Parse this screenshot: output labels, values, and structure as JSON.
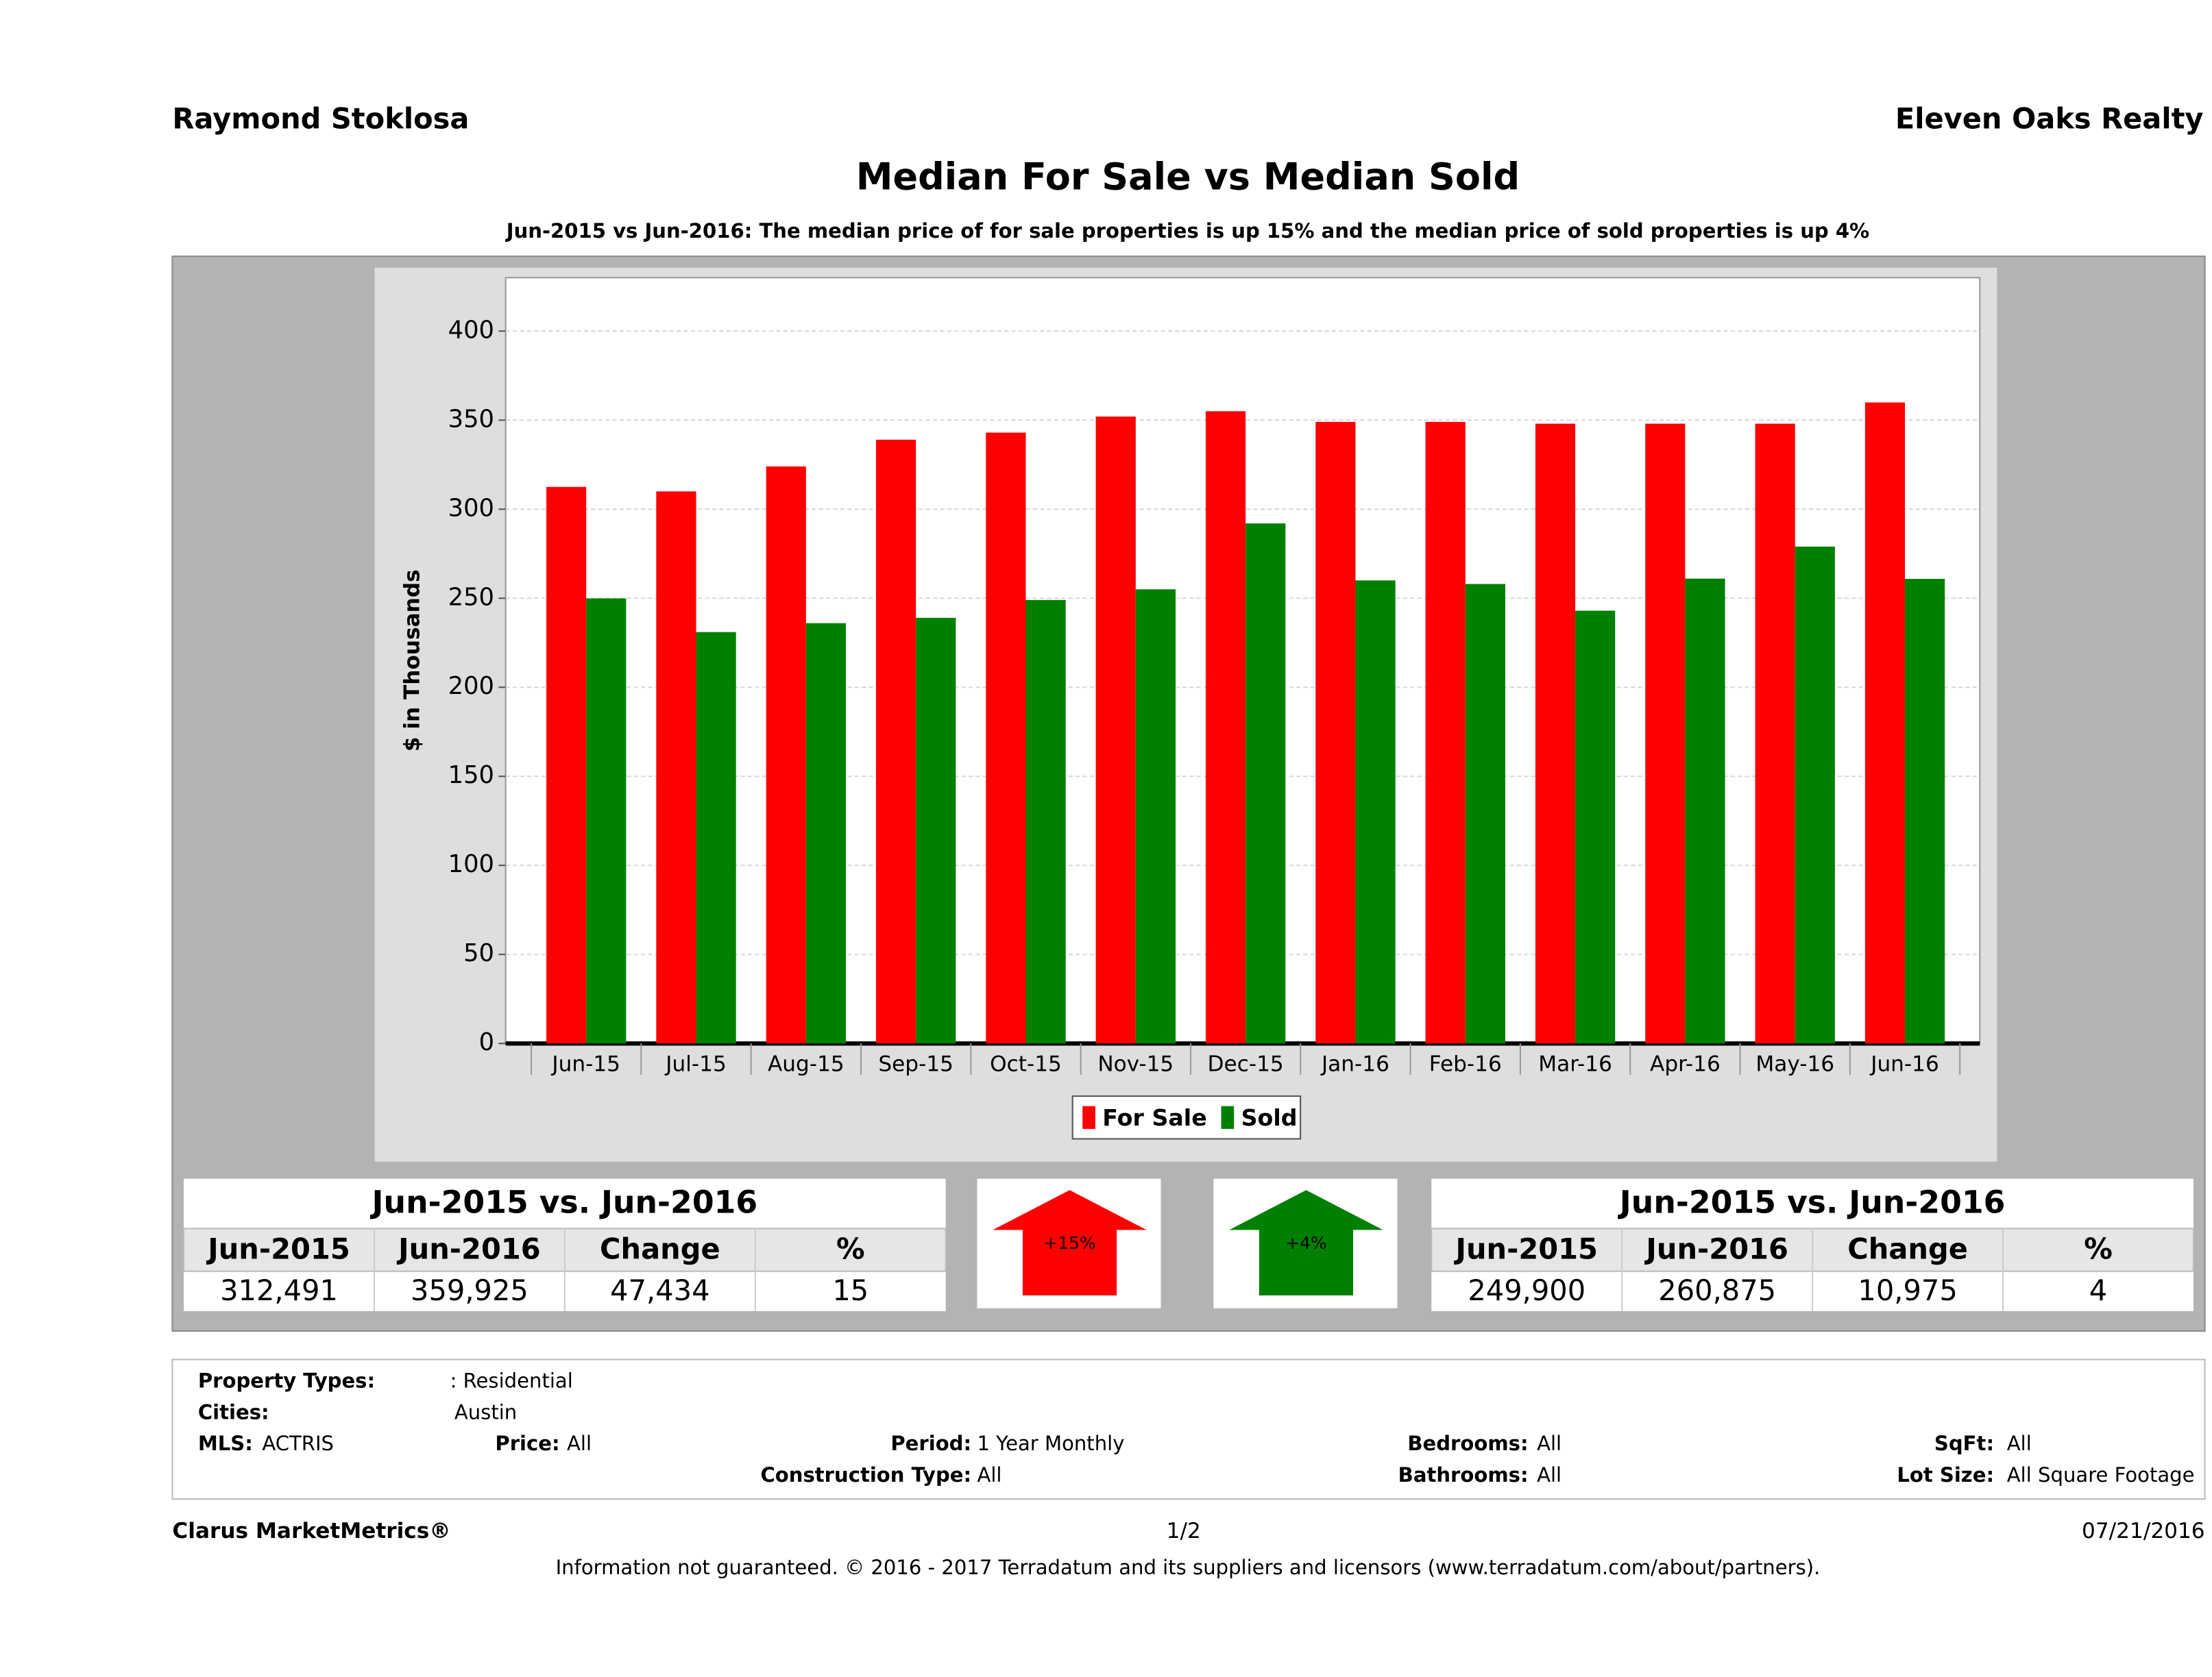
{
  "header": {
    "agent": "Raymond Stoklosa",
    "company": "Eleven Oaks Realty"
  },
  "chart_data": {
    "type": "bar",
    "title": "Median For Sale vs Median Sold",
    "subtitle": "Jun-2015 vs Jun-2016: The median price of for sale properties is up 15% and the median price of sold properties is up 4%",
    "ylabel": "$ in Thousands",
    "categories": [
      "Jun-15",
      "Jul-15",
      "Aug-15",
      "Sep-15",
      "Oct-15",
      "Nov-15",
      "Dec-15",
      "Jan-16",
      "Feb-16",
      "Mar-16",
      "Apr-16",
      "May-16",
      "Jun-16"
    ],
    "series": [
      {
        "name": "For Sale",
        "color": "#ff0000",
        "values": [
          312.491,
          310,
          324,
          339,
          343,
          352,
          355,
          349,
          349,
          348,
          348,
          348,
          359.925
        ]
      },
      {
        "name": "Sold",
        "color": "#008000",
        "values": [
          249.9,
          231,
          236,
          239,
          249,
          255,
          292,
          260,
          258,
          243,
          261,
          279,
          260.875
        ]
      }
    ],
    "ylim": [
      0,
      430
    ],
    "yticks": [
      0,
      50,
      100,
      150,
      200,
      250,
      300,
      350,
      400
    ],
    "grid": true,
    "legend": "bottom"
  },
  "summary": [
    {
      "title": "Jun-2015 vs. Jun-2016",
      "headers": [
        "Jun-2015",
        "Jun-2016",
        "Change",
        "%"
      ],
      "values": [
        "312,491",
        "359,925",
        "47,434",
        "15"
      ],
      "arrow_label": "+15%",
      "arrow_color": "#ff0000"
    },
    {
      "title": "Jun-2015 vs. Jun-2016",
      "headers": [
        "Jun-2015",
        "Jun-2016",
        "Change",
        "%"
      ],
      "values": [
        "249,900",
        "260,875",
        "10,975",
        "4"
      ],
      "arrow_label": "+4%",
      "arrow_color": "#008000"
    }
  ],
  "filters": [
    {
      "label": "Property Types:",
      "value": ": Residential"
    },
    {
      "label": "Cities:",
      "value": "Austin"
    },
    {
      "label": "MLS:",
      "value": "ACTRIS"
    },
    {
      "label": "Price:",
      "value": "All"
    },
    {
      "label": "Period:",
      "value": "1 Year Monthly"
    },
    {
      "label": "Bedrooms:",
      "value": "All"
    },
    {
      "label": "SqFt:",
      "value": "All"
    },
    {
      "label": "Construction Type:",
      "value": "All"
    },
    {
      "label": "Bathrooms:",
      "value": "All"
    },
    {
      "label": "Lot Size:",
      "value": "All Square Footage"
    }
  ],
  "footer": {
    "brand": "Clarus MarketMetrics®",
    "page": "1/2",
    "date": "07/21/2016",
    "disclaimer": "Information not guaranteed. © 2016 - 2017 Terradatum and its suppliers and licensors (www.terradatum.com/about/partners)."
  }
}
